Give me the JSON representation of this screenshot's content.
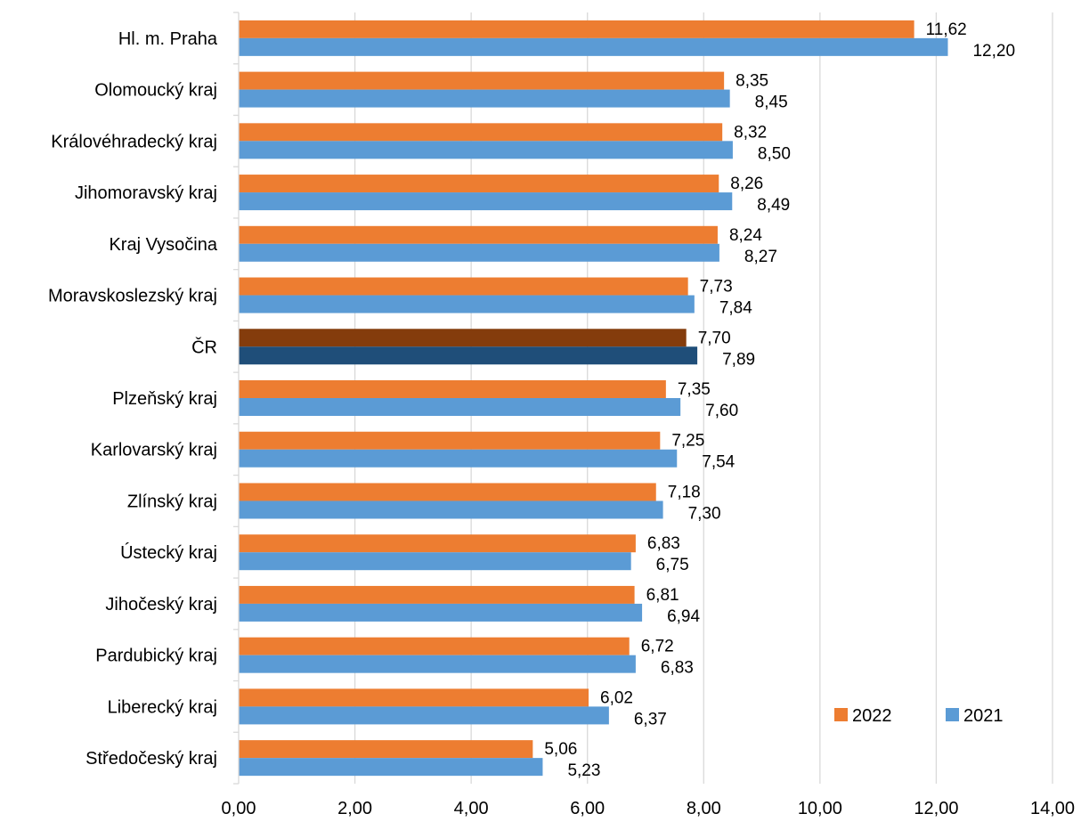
{
  "chart_data": {
    "type": "bar",
    "orientation": "horizontal",
    "title": "",
    "xlabel": "",
    "ylabel": "",
    "xlim": [
      0,
      14
    ],
    "x_ticks": [
      "0,00",
      "2,00",
      "4,00",
      "6,00",
      "8,00",
      "10,00",
      "12,00",
      "14,00"
    ],
    "grid": "vertical",
    "legend_position": "bottom-right",
    "categories": [
      "Hl. m. Praha",
      "Olomoucký kraj",
      "Královéhradecký kraj",
      "Jihomoravský kraj",
      "Kraj Vysočina",
      "Moravskoslezský kraj",
      "ČR",
      "Plzeňský kraj",
      "Karlovarský kraj",
      "Zlínský kraj",
      "Ústecký kraj",
      "Jihočeský kraj",
      "Pardubický kraj",
      "Liberecký kraj",
      "Středočeský kraj"
    ],
    "highlight_category": "ČR",
    "series": [
      {
        "name": "2022",
        "color": "#ED7D31",
        "highlight_color": "#843C0C",
        "values": [
          11.62,
          8.35,
          8.32,
          8.26,
          8.24,
          7.73,
          7.7,
          7.35,
          7.25,
          7.18,
          6.83,
          6.81,
          6.72,
          6.02,
          5.06
        ],
        "labels": [
          "11,62",
          "8,35",
          "8,32",
          "8,26",
          "8,24",
          "7,73",
          "7,70",
          "7,35",
          "7,25",
          "7,18",
          "6,83",
          "6,81",
          "6,72",
          "6,02",
          "5,06"
        ]
      },
      {
        "name": "2021",
        "color": "#5B9BD5",
        "highlight_color": "#1F4E79",
        "values": [
          12.2,
          8.45,
          8.5,
          8.49,
          8.27,
          7.84,
          7.89,
          7.6,
          7.54,
          7.3,
          6.75,
          6.94,
          6.83,
          6.37,
          5.23
        ],
        "labels": [
          "12,20",
          "8,45",
          "8,50",
          "8,49",
          "8,27",
          "7,84",
          "7,89",
          "7,60",
          "7,54",
          "7,30",
          "6,75",
          "6,94",
          "6,83",
          "6,37",
          "5,23"
        ]
      }
    ]
  }
}
